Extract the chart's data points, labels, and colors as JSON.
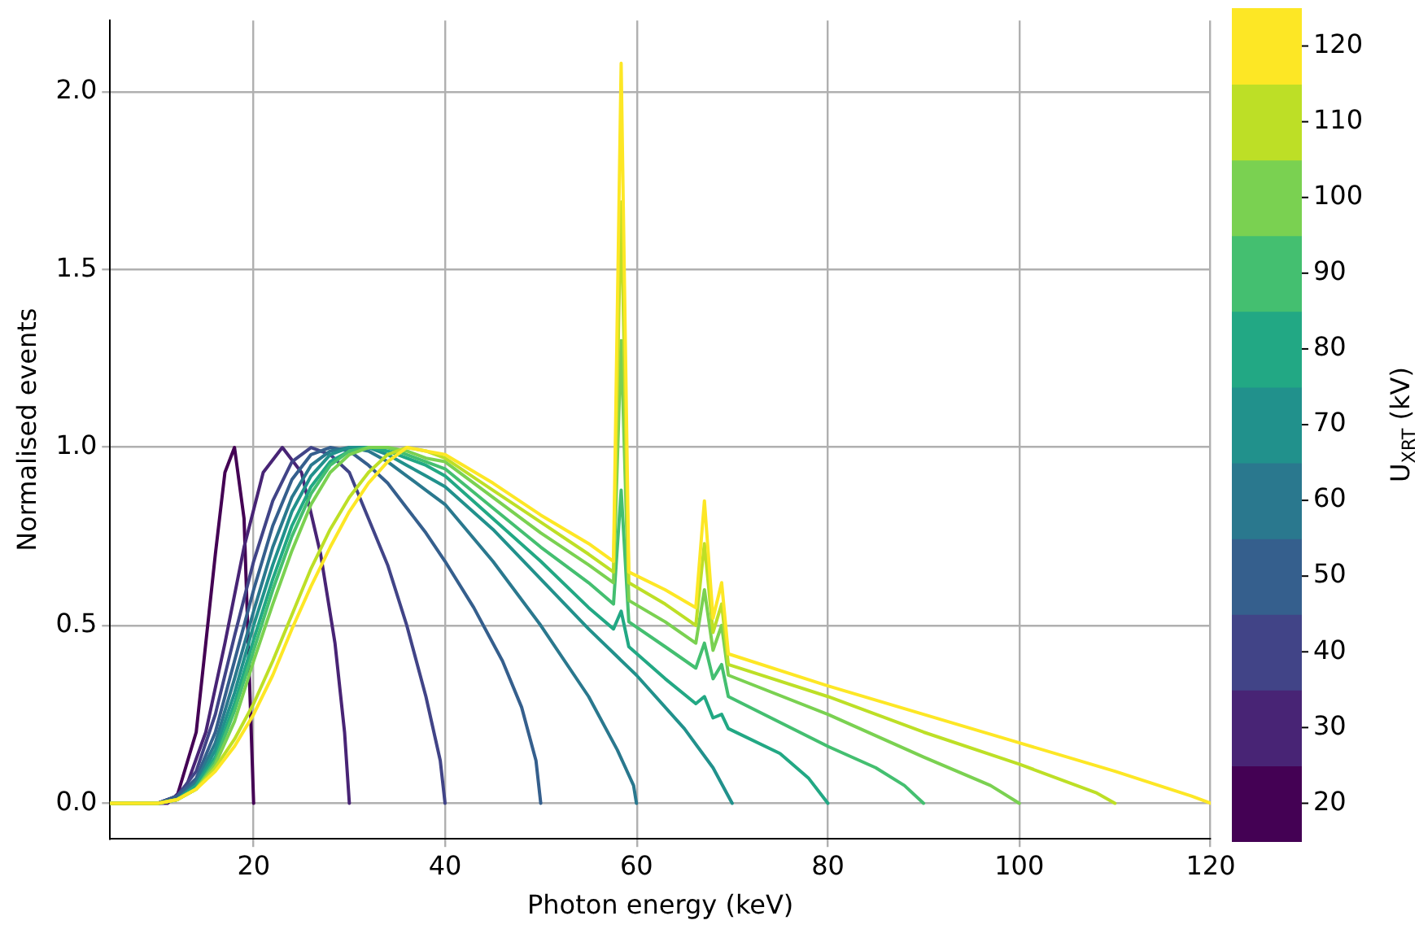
{
  "chart_data": {
    "type": "line",
    "xlabel": "Photon energy (keV)",
    "ylabel": "Normalised events",
    "clabel": "U$_{XRT}$ (kV)",
    "xlim": [
      5,
      120
    ],
    "xticks": [
      20,
      40,
      60,
      80,
      100,
      120
    ],
    "ylim": [
      -0.1,
      2.2
    ],
    "yticks": [
      {
        "value": 0,
        "label": "0.0"
      },
      {
        "value": 0.5,
        "label": "0.5"
      },
      {
        "value": 1,
        "label": "1.0"
      },
      {
        "value": 1.5,
        "label": "1.5"
      },
      {
        "value": 2,
        "label": "2.0"
      }
    ],
    "clim": [
      15,
      125
    ],
    "cticks": [
      20,
      30,
      40,
      50,
      60,
      70,
      80,
      90,
      100,
      110,
      120
    ],
    "grid": true,
    "legend": false,
    "series": [
      {
        "color": "#440154",
        "x": [
          5,
          10,
          12,
          14,
          16,
          17,
          18,
          19,
          20
        ],
        "values": [
          0,
          0,
          0.02,
          0.2,
          0.7,
          0.93,
          1.0,
          0.8,
          0
        ]
      },
      {
        "color": "#482475",
        "x": [
          5,
          11,
          13,
          15,
          17,
          19,
          21,
          23,
          25,
          27,
          28.5,
          29.5,
          30
        ],
        "values": [
          0,
          0,
          0.05,
          0.2,
          0.45,
          0.72,
          0.93,
          1.0,
          0.93,
          0.7,
          0.45,
          0.2,
          0
        ]
      },
      {
        "color": "#414487",
        "x": [
          5,
          10,
          12,
          14,
          16,
          18,
          20,
          22,
          24,
          26,
          28,
          30,
          32,
          34,
          36,
          38,
          39.5,
          40
        ],
        "values": [
          0,
          0,
          0.02,
          0.09,
          0.25,
          0.47,
          0.68,
          0.85,
          0.96,
          1.0,
          0.98,
          0.93,
          0.8,
          0.67,
          0.5,
          0.3,
          0.12,
          0
        ]
      },
      {
        "color": "#355f8d",
        "x": [
          5,
          10,
          12,
          14,
          16,
          18,
          20,
          22,
          24,
          26,
          28,
          30,
          32,
          34,
          36,
          38,
          40,
          43,
          46,
          48,
          49.5,
          50
        ],
        "values": [
          0,
          0,
          0.02,
          0.07,
          0.2,
          0.4,
          0.6,
          0.78,
          0.91,
          0.98,
          1.0,
          0.99,
          0.95,
          0.9,
          0.83,
          0.76,
          0.68,
          0.55,
          0.4,
          0.27,
          0.12,
          0
        ]
      },
      {
        "color": "#2a788e",
        "x": [
          5,
          10,
          12,
          14,
          16,
          18,
          20,
          22,
          24,
          26,
          28,
          30,
          32,
          34,
          36,
          38,
          40,
          45,
          50,
          55,
          58,
          59.7,
          60
        ],
        "values": [
          0,
          0,
          0.01,
          0.06,
          0.17,
          0.35,
          0.54,
          0.72,
          0.86,
          0.95,
          0.99,
          1.0,
          0.99,
          0.96,
          0.92,
          0.88,
          0.84,
          0.68,
          0.5,
          0.3,
          0.15,
          0.05,
          0
        ]
      },
      {
        "color": "#21918c",
        "x": [
          5,
          10,
          12,
          14,
          16,
          18,
          20,
          22,
          24,
          26,
          28,
          30,
          32,
          34,
          36,
          38,
          40,
          45,
          50,
          55,
          60,
          65,
          68,
          70
        ],
        "values": [
          0,
          0,
          0.01,
          0.05,
          0.15,
          0.31,
          0.5,
          0.67,
          0.82,
          0.92,
          0.98,
          1.0,
          1.0,
          0.98,
          0.95,
          0.92,
          0.89,
          0.77,
          0.63,
          0.49,
          0.36,
          0.21,
          0.1,
          0
        ]
      },
      {
        "color": "#22a884",
        "x": [
          5,
          10,
          12,
          14,
          16,
          18,
          20,
          22,
          24,
          26,
          28,
          30,
          32,
          34,
          36,
          38,
          40,
          45,
          50,
          55,
          57.6,
          58.4,
          59.2,
          63,
          66.2,
          67.1,
          68,
          68.9,
          69.6,
          75,
          78,
          80
        ],
        "values": [
          0,
          0,
          0.01,
          0.05,
          0.13,
          0.28,
          0.46,
          0.63,
          0.78,
          0.89,
          0.96,
          0.99,
          1.0,
          0.99,
          0.97,
          0.95,
          0.92,
          0.8,
          0.68,
          0.55,
          0.49,
          0.54,
          0.44,
          0.35,
          0.28,
          0.3,
          0.24,
          0.25,
          0.21,
          0.14,
          0.07,
          0
        ]
      },
      {
        "color": "#44bf70",
        "x": [
          5,
          10,
          12,
          14,
          16,
          18,
          20,
          22,
          24,
          26,
          28,
          30,
          32,
          34,
          36,
          38,
          40,
          45,
          50,
          55,
          57.6,
          58.4,
          59.2,
          63,
          66.2,
          67.1,
          68,
          68.9,
          69.6,
          80,
          85,
          88,
          90
        ],
        "values": [
          0,
          0,
          0.01,
          0.04,
          0.12,
          0.26,
          0.43,
          0.6,
          0.75,
          0.87,
          0.95,
          0.99,
          1.0,
          1.0,
          0.98,
          0.96,
          0.94,
          0.83,
          0.72,
          0.62,
          0.56,
          0.88,
          0.51,
          0.44,
          0.38,
          0.45,
          0.35,
          0.39,
          0.3,
          0.16,
          0.1,
          0.05,
          0
        ]
      },
      {
        "color": "#7ad151",
        "x": [
          5,
          10,
          12,
          14,
          16,
          18,
          20,
          22,
          24,
          26,
          28,
          30,
          32,
          34,
          36,
          38,
          40,
          45,
          50,
          55,
          57.6,
          58.4,
          59.2,
          63,
          66.2,
          67.1,
          68,
          68.9,
          69.6,
          80,
          90,
          97,
          100
        ],
        "values": [
          0,
          0,
          0.01,
          0.04,
          0.11,
          0.23,
          0.4,
          0.56,
          0.71,
          0.84,
          0.93,
          0.98,
          1.0,
          1.0,
          0.99,
          0.97,
          0.96,
          0.86,
          0.76,
          0.67,
          0.62,
          1.3,
          0.57,
          0.51,
          0.45,
          0.6,
          0.43,
          0.5,
          0.36,
          0.25,
          0.13,
          0.05,
          0
        ]
      },
      {
        "color": "#bddf26",
        "x": [
          5,
          10,
          12,
          14,
          16,
          18,
          20,
          22,
          24,
          26,
          28,
          30,
          32,
          34,
          36,
          38,
          40,
          45,
          50,
          55,
          57.6,
          58.4,
          59.2,
          63,
          66.2,
          67.1,
          68,
          68.9,
          69.6,
          80,
          90,
          100,
          108,
          110
        ],
        "values": [
          0,
          0,
          0.01,
          0.04,
          0.1,
          0.18,
          0.28,
          0.4,
          0.53,
          0.66,
          0.77,
          0.86,
          0.93,
          0.98,
          1.0,
          0.99,
          0.97,
          0.88,
          0.79,
          0.7,
          0.65,
          1.69,
          0.62,
          0.56,
          0.5,
          0.73,
          0.48,
          0.56,
          0.39,
          0.3,
          0.2,
          0.11,
          0.03,
          0
        ]
      },
      {
        "color": "#fde725",
        "x": [
          5,
          10,
          12,
          14,
          16,
          18,
          20,
          22,
          24,
          26,
          28,
          30,
          32,
          34,
          36,
          38,
          40,
          45,
          50,
          55,
          57.6,
          58.4,
          59.2,
          63,
          66.2,
          67.1,
          68,
          68.9,
          69.6,
          80,
          90,
          100,
          110,
          118,
          120
        ],
        "values": [
          0,
          0,
          0.01,
          0.04,
          0.09,
          0.16,
          0.25,
          0.36,
          0.49,
          0.61,
          0.72,
          0.82,
          0.9,
          0.96,
          1.0,
          0.99,
          0.98,
          0.9,
          0.81,
          0.73,
          0.68,
          2.08,
          0.65,
          0.6,
          0.55,
          0.85,
          0.52,
          0.62,
          0.42,
          0.33,
          0.25,
          0.17,
          0.09,
          0.02,
          0
        ]
      }
    ]
  }
}
